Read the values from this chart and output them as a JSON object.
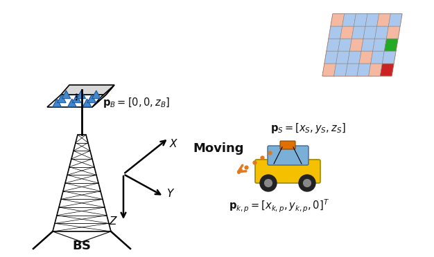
{
  "bg_color": "#ffffff",
  "text_pB": "$\\mathbf{p}_B = [0, 0, z_B]$",
  "text_pS": "$\\mathbf{p}_S = [x_S, y_S, z_S]$",
  "text_pkp": "$\\mathbf{p}_{k,p} = [x_{k,p}, y_{k,p}, 0]^T$",
  "text_moving": "Moving",
  "text_BS": "\\textbf{BS}",
  "text_X": "$X$",
  "text_Y": "$Y$",
  "text_Z": "$Z$",
  "arrow_color": "#E07820",
  "tower_color": "#000000"
}
